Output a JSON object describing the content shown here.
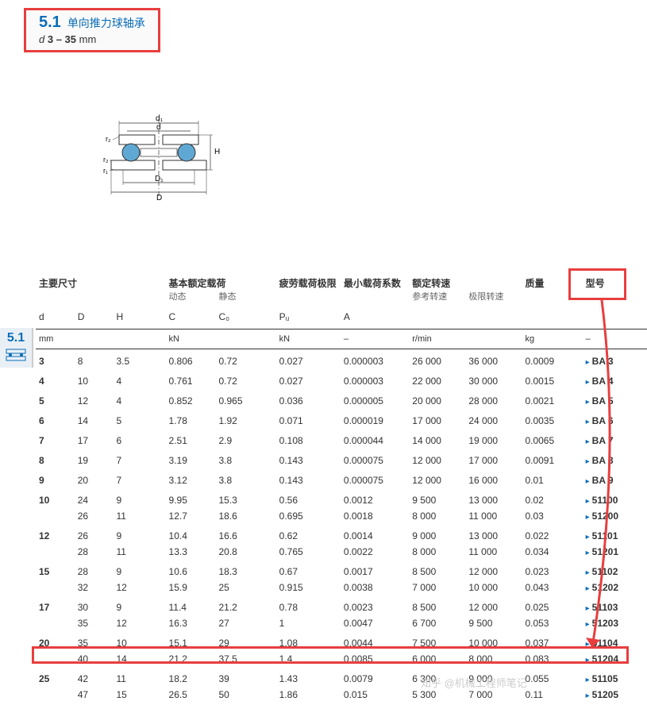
{
  "header": {
    "section_num": "5.1",
    "section_title": "单向推力球轴承",
    "dim_label": "d",
    "dim_range": "3 – 35",
    "dim_unit": "mm"
  },
  "side_tab": {
    "num": "5.1"
  },
  "diagram": {
    "labels": {
      "d1": "d₁",
      "d": "d",
      "r2a": "r₂",
      "r2b": "r₂",
      "r1": "r₁",
      "H": "H",
      "D1": "D₁",
      "D": "D"
    },
    "ball_fill": "#5fa8d3",
    "line_color": "#333"
  },
  "table": {
    "columns": {
      "main_dims": "主要尺寸",
      "load_rating": "基本额定载荷",
      "load_rating_dyn": "动态",
      "load_rating_stat": "静态",
      "fatigue": "疲劳载荷极限",
      "min_load": "最小载荷系数",
      "speed": "额定转速",
      "speed_ref": "参考转速",
      "speed_lim": "极限转速",
      "mass": "质量",
      "model": "型号"
    },
    "symbols": {
      "d": "d",
      "D": "D",
      "H": "H",
      "C": "C",
      "C0": "C₀",
      "Pu": "Pᵤ",
      "A": "A"
    },
    "units": {
      "mm": "mm",
      "kN": "kN",
      "dash": "–",
      "rmin": "r/min",
      "kg": "kg"
    },
    "rows": [
      {
        "d": "3",
        "sub": [
          {
            "D": "8",
            "H": "3.5",
            "C": "0.806",
            "C0": "0.72",
            "Pu": "0.027",
            "A": "0.000003",
            "sref": "26 000",
            "slim": "36 000",
            "mass": "0.0009",
            "model": "BA 3"
          }
        ]
      },
      {
        "d": "4",
        "sub": [
          {
            "D": "10",
            "H": "4",
            "C": "0.761",
            "C0": "0.72",
            "Pu": "0.027",
            "A": "0.000003",
            "sref": "22 000",
            "slim": "30 000",
            "mass": "0.0015",
            "model": "BA 4"
          }
        ]
      },
      {
        "d": "5",
        "sub": [
          {
            "D": "12",
            "H": "4",
            "C": "0.852",
            "C0": "0.965",
            "Pu": "0.036",
            "A": "0.000005",
            "sref": "20 000",
            "slim": "28 000",
            "mass": "0.0021",
            "model": "BA 5"
          }
        ]
      },
      {
        "d": "6",
        "sub": [
          {
            "D": "14",
            "H": "5",
            "C": "1.78",
            "C0": "1.92",
            "Pu": "0.071",
            "A": "0.000019",
            "sref": "17 000",
            "slim": "24 000",
            "mass": "0.0035",
            "model": "BA 6"
          }
        ]
      },
      {
        "d": "7",
        "sub": [
          {
            "D": "17",
            "H": "6",
            "C": "2.51",
            "C0": "2.9",
            "Pu": "0.108",
            "A": "0.000044",
            "sref": "14 000",
            "slim": "19 000",
            "mass": "0.0065",
            "model": "BA 7"
          }
        ]
      },
      {
        "d": "8",
        "sub": [
          {
            "D": "19",
            "H": "7",
            "C": "3.19",
            "C0": "3.8",
            "Pu": "0.143",
            "A": "0.000075",
            "sref": "12 000",
            "slim": "17 000",
            "mass": "0.0091",
            "model": "BA 8"
          }
        ]
      },
      {
        "d": "9",
        "sub": [
          {
            "D": "20",
            "H": "7",
            "C": "3.12",
            "C0": "3.8",
            "Pu": "0.143",
            "A": "0.000075",
            "sref": "12 000",
            "slim": "16 000",
            "mass": "0.01",
            "model": "BA 9"
          }
        ]
      },
      {
        "d": "10",
        "sub": [
          {
            "D": "24",
            "H": "9",
            "C": "9.95",
            "C0": "15.3",
            "Pu": "0.56",
            "A": "0.0012",
            "sref": "9 500",
            "slim": "13 000",
            "mass": "0.02",
            "model": "51100"
          },
          {
            "D": "26",
            "H": "11",
            "C": "12.7",
            "C0": "18.6",
            "Pu": "0.695",
            "A": "0.0018",
            "sref": "8 000",
            "slim": "11 000",
            "mass": "0.03",
            "model": "51200"
          }
        ]
      },
      {
        "d": "12",
        "sub": [
          {
            "D": "26",
            "H": "9",
            "C": "10.4",
            "C0": "16.6",
            "Pu": "0.62",
            "A": "0.0014",
            "sref": "9 000",
            "slim": "13 000",
            "mass": "0.022",
            "model": "51101"
          },
          {
            "D": "28",
            "H": "11",
            "C": "13.3",
            "C0": "20.8",
            "Pu": "0.765",
            "A": "0.0022",
            "sref": "8 000",
            "slim": "11 000",
            "mass": "0.034",
            "model": "51201"
          }
        ]
      },
      {
        "d": "15",
        "sub": [
          {
            "D": "28",
            "H": "9",
            "C": "10.6",
            "C0": "18.3",
            "Pu": "0.67",
            "A": "0.0017",
            "sref": "8 500",
            "slim": "12 000",
            "mass": "0.023",
            "model": "51102"
          },
          {
            "D": "32",
            "H": "12",
            "C": "15.9",
            "C0": "25",
            "Pu": "0.915",
            "A": "0.0038",
            "sref": "7 000",
            "slim": "10 000",
            "mass": "0.043",
            "model": "51202"
          }
        ]
      },
      {
        "d": "17",
        "sub": [
          {
            "D": "30",
            "H": "9",
            "C": "11.4",
            "C0": "21.2",
            "Pu": "0.78",
            "A": "0.0023",
            "sref": "8 500",
            "slim": "12 000",
            "mass": "0.025",
            "model": "51103"
          },
          {
            "D": "35",
            "H": "12",
            "C": "16.3",
            "C0": "27",
            "Pu": "1",
            "A": "0.0047",
            "sref": "6 700",
            "slim": "9 500",
            "mass": "0.053",
            "model": "51203"
          }
        ]
      },
      {
        "d": "20",
        "sub": [
          {
            "D": "35",
            "H": "10",
            "C": "15.1",
            "C0": "29",
            "Pu": "1.08",
            "A": "0.0044",
            "sref": "7 500",
            "slim": "10 000",
            "mass": "0.037",
            "model": "51104"
          },
          {
            "D": "40",
            "H": "14",
            "C": "21.2",
            "C0": "37.5",
            "Pu": "1.4",
            "A": "0.0085",
            "sref": "6 000",
            "slim": "8 000",
            "mass": "0.083",
            "model": "51204"
          }
        ]
      },
      {
        "d": "25",
        "sub": [
          {
            "D": "42",
            "H": "11",
            "C": "18.2",
            "C0": "39",
            "Pu": "1.43",
            "A": "0.0079",
            "sref": "6 300",
            "slim": "9 000",
            "mass": "0.055",
            "model": "51105"
          },
          {
            "D": "47",
            "H": "15",
            "C": "26.5",
            "C0": "50",
            "Pu": "1.86",
            "A": "0.015",
            "sref": "5 300",
            "slim": "7 000",
            "mass": "0.11",
            "model": "51205"
          }
        ]
      }
    ]
  },
  "highlight": {
    "arrow_color": "#e83e3e"
  },
  "watermark": "知乎 @机械工程师笔记"
}
